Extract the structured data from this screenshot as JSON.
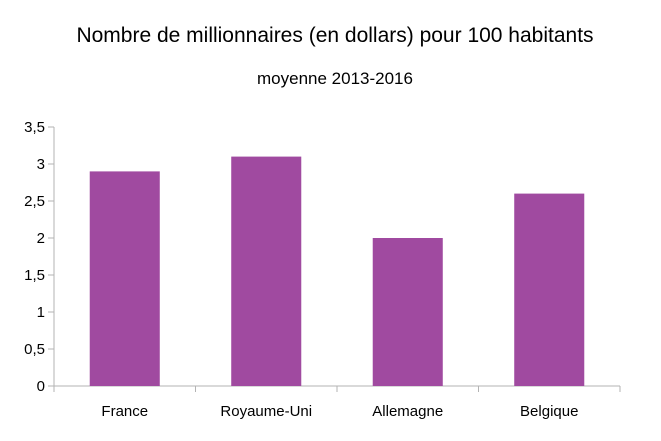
{
  "chart_data": {
    "type": "bar",
    "title": "Nombre de millionnaires (en dollars) pour 100 habitants",
    "subtitle": "moyenne 2013-2016",
    "categories": [
      "France",
      "Royaume-Uni",
      "Allemagne",
      "Belgique"
    ],
    "values": [
      2.9,
      3.1,
      2.0,
      2.6
    ],
    "ylim": [
      0,
      3.5
    ],
    "yticks": [
      "0",
      "0,5",
      "1",
      "1,5",
      "2",
      "2,5",
      "3",
      "3,5"
    ],
    "grid": false,
    "bar_color": "#a04aa0",
    "axis_color": "#b3b3b3"
  }
}
